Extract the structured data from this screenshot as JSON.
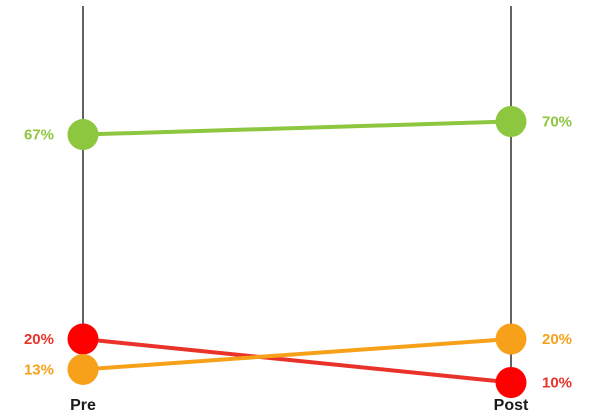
{
  "chart_data": {
    "type": "line",
    "categories": [
      "Pre",
      "Post"
    ],
    "series": [
      {
        "values": [
          67,
          70
        ],
        "labels": [
          "67%",
          "70%"
        ],
        "color": "#8dc63f"
      },
      {
        "values": [
          20,
          10
        ],
        "labels": [
          "20%",
          "10%"
        ],
        "color": "#e8322a",
        "marker_color": "#ff0000"
      },
      {
        "values": [
          13,
          20
        ],
        "labels": [
          "13%",
          "20%"
        ],
        "color": "#f7a11a"
      }
    ],
    "ylim": [
      0,
      100
    ],
    "grid": false,
    "legend": "none"
  }
}
